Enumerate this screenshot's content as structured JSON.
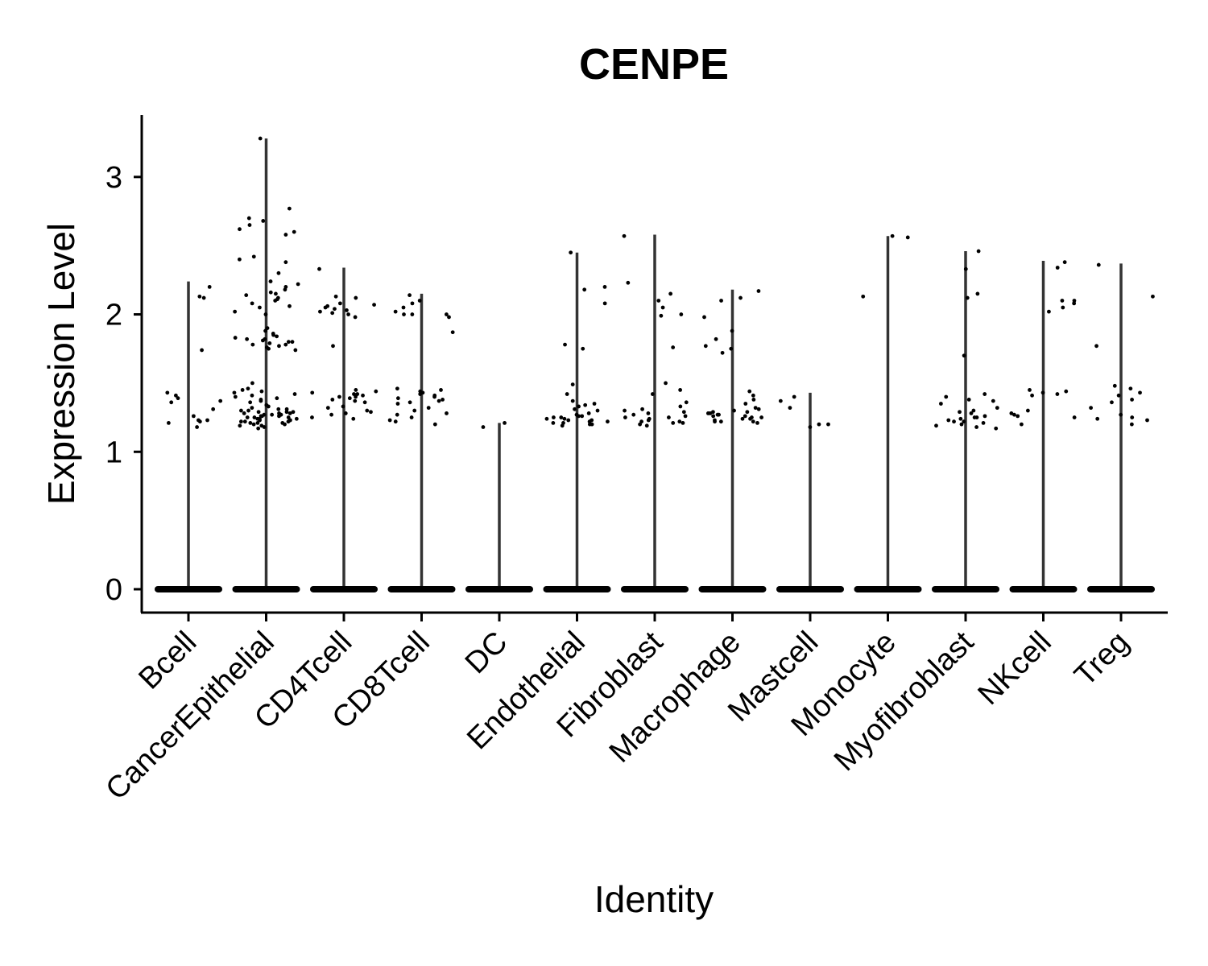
{
  "chart_data": {
    "type": "violin",
    "title": "CENPE",
    "xlabel": "Identity",
    "ylabel": "Expression Level",
    "ylim": [
      -0.17,
      3.45
    ],
    "yticks": [
      0,
      1,
      2,
      3
    ],
    "categories": [
      "Bcell",
      "CancerEpithelial",
      "CD4Tcell",
      "CD8Tcell",
      "DC",
      "Endothelial",
      "Fibroblast",
      "Macrophage",
      "Mastcell",
      "Monocyte",
      "Myofibroblast",
      "NKcell",
      "Treg"
    ],
    "max_values": [
      2.24,
      3.28,
      2.34,
      2.15,
      1.21,
      2.45,
      2.58,
      2.18,
      1.43,
      2.57,
      2.46,
      2.39,
      2.37
    ],
    "zero_value": 0,
    "nonzero_points": [
      [
        1.23,
        1.41,
        1.18,
        1.37,
        1.22,
        2.13,
        1.43,
        1.31,
        1.74,
        2.2,
        2.12,
        1.39,
        1.23,
        1.21,
        1.26,
        1.36
      ],
      [
        1.25,
        1.2,
        1.28,
        1.22,
        1.3,
        1.18,
        1.27,
        1.24,
        1.32,
        1.21,
        1.29,
        1.23,
        1.26,
        1.19,
        1.31,
        1.22,
        1.28,
        1.25,
        1.17,
        1.34,
        1.24,
        1.27,
        1.21,
        1.3,
        1.26,
        1.23,
        1.29,
        1.2,
        1.33,
        1.25,
        1.28,
        1.22,
        1.27,
        1.19,
        1.31,
        1.24,
        1.26,
        1.21,
        1.29,
        1.23,
        1.38,
        1.42,
        1.44,
        1.4,
        1.36,
        1.45,
        1.39,
        1.43,
        1.5,
        1.41,
        1.37,
        1.46,
        1.78,
        1.82,
        1.75,
        1.8,
        1.85,
        1.77,
        1.83,
        1.79,
        1.81,
        1.76,
        1.84,
        1.78,
        1.88,
        1.74,
        1.82,
        1.9,
        1.8,
        1.86,
        2.02,
        2.1,
        2.15,
        2.05,
        2.2,
        2.12,
        2.08,
        2.18,
        2.22,
        2.0,
        2.14,
        2.24,
        2.11,
        2.06,
        2.16,
        2.3,
        2.4,
        2.6,
        2.62,
        2.65,
        2.68,
        2.38,
        2.42,
        2.77,
        2.7,
        2.58,
        3.28
      ],
      [
        1.4,
        1.43,
        1.38,
        1.42,
        1.36,
        1.41,
        1.44,
        1.39,
        1.3,
        1.27,
        1.25,
        1.32,
        1.28,
        1.24,
        1.45,
        1.37,
        1.33,
        1.42,
        1.29,
        1.4,
        2.02,
        2.0,
        2.05,
        1.98,
        2.08,
        2.01,
        2.12,
        2.04,
        2.13,
        2.06,
        1.77,
        2.33,
        2.03,
        2.07
      ],
      [
        1.4,
        1.43,
        1.38,
        1.45,
        1.36,
        1.42,
        1.44,
        1.39,
        1.28,
        1.25,
        1.23,
        1.32,
        1.3,
        1.22,
        1.35,
        1.27,
        1.46,
        1.37,
        1.2,
        1.41,
        2.0,
        2.05,
        2.1,
        1.98,
        2.14,
        2.02,
        2.0,
        2.08,
        1.87,
        2.0
      ],
      [
        1.18,
        1.21
      ],
      [
        1.22,
        1.25,
        1.2,
        1.24,
        1.3,
        1.21,
        1.26,
        1.23,
        1.33,
        1.22,
        1.28,
        1.19,
        1.25,
        1.35,
        1.24,
        1.21,
        1.27,
        1.31,
        1.23,
        1.2,
        1.34,
        1.26,
        1.42,
        1.37,
        1.49,
        1.75,
        1.78,
        2.08,
        2.2,
        2.18,
        2.45
      ],
      [
        1.22,
        1.2,
        1.25,
        1.23,
        1.28,
        1.21,
        1.26,
        1.3,
        1.24,
        1.19,
        1.27,
        1.33,
        1.22,
        1.29,
        1.25,
        1.36,
        1.21,
        1.42,
        1.5,
        1.45,
        1.31,
        1.76,
        1.99,
        2.05,
        2.1,
        2.23,
        2.0,
        2.15,
        2.57
      ],
      [
        1.24,
        1.27,
        1.22,
        1.29,
        1.25,
        1.3,
        1.21,
        1.26,
        1.28,
        1.23,
        1.31,
        1.25,
        1.27,
        1.22,
        1.32,
        1.24,
        1.26,
        1.35,
        1.29,
        1.38,
        1.41,
        1.44,
        1.22,
        1.28,
        1.77,
        1.82,
        1.72,
        1.75,
        1.88,
        1.98,
        2.1,
        2.12,
        2.17
      ],
      [
        1.32,
        1.37,
        1.4,
        1.2,
        1.18,
        1.2
      ],
      [
        2.57,
        2.13,
        2.56
      ],
      [
        1.2,
        1.25,
        1.3,
        1.22,
        1.35,
        1.28,
        1.38,
        1.21,
        1.24,
        1.19,
        1.32,
        1.42,
        1.26,
        1.23,
        1.4,
        1.18,
        1.37,
        1.29,
        1.22,
        1.17,
        1.25,
        1.7,
        2.15,
        2.12,
        2.33,
        2.46
      ],
      [
        1.42,
        1.45,
        1.3,
        1.27,
        1.2,
        1.44,
        1.43,
        1.41,
        1.28,
        1.26,
        2.1,
        2.05,
        2.02,
        2.08,
        2.1,
        2.34,
        2.38,
        1.25
      ],
      [
        1.46,
        1.38,
        1.24,
        1.43,
        1.36,
        1.2,
        1.27,
        1.23,
        1.41,
        1.32,
        1.25,
        1.77,
        2.36,
        2.13,
        1.48
      ]
    ]
  }
}
